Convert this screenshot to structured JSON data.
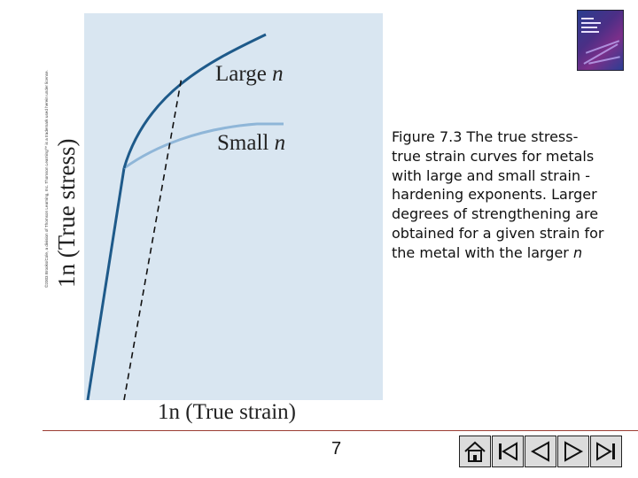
{
  "copyright": "©2003 Brooks/Cole, a division of Thomson Learning, Inc. Thomson Learning™ is a trademark used herein under license.",
  "figure": {
    "y_axis_label": "1n (True stress)",
    "x_axis_label": "1n (True strain)",
    "curves": [
      {
        "label_main": "Large ",
        "label_var": "n",
        "color": "#1e5a8a"
      },
      {
        "label_main": "Small ",
        "label_var": "n",
        "color": "#8fb6d8"
      }
    ],
    "panel_color": "#d9e6f1"
  },
  "caption": {
    "text": "Figure 7.3 The true stress-true strain curves for metals with large and small strain -hardening exponents. Larger degrees of strengthening are obtained for a given strain for the metal with the larger ",
    "var": "n"
  },
  "page_number": "7",
  "nav": {
    "buttons": [
      "home-icon",
      "first-page-icon",
      "previous-icon",
      "next-icon",
      "last-page-icon"
    ]
  }
}
